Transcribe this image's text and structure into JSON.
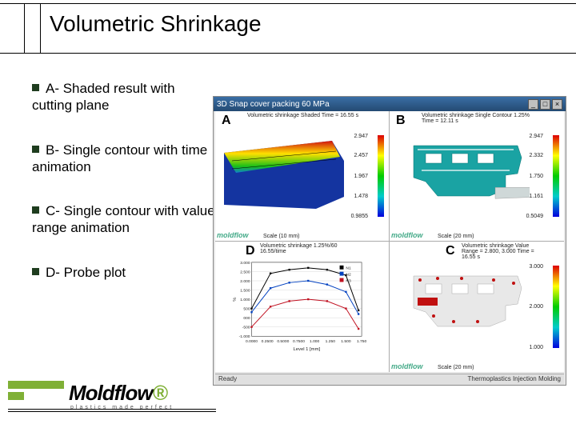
{
  "title": "Volumetric Shrinkage",
  "bullets": [
    "A- Shaded result with cutting plane",
    "B- Single contour with time animation",
    "C- Single contour with value range animation",
    "D- Probe plot"
  ],
  "window": {
    "title": "3D Snap cover packing 60 MPa",
    "min": "_",
    "max": "□",
    "close": "×",
    "status_left": "Ready",
    "status_right": "Thermoplastics Injection Molding"
  },
  "quads": {
    "A": {
      "label": "A",
      "caption": "Volumetric shrinkage Shaded\nTime = 16.55 s",
      "colorbar": {
        "gradient": "rainbow",
        "ticks": [
          "2.947",
          "2.457",
          "1.967",
          "1.478",
          "0.9855"
        ]
      },
      "scale": "Scale (10 mm)",
      "brand": "moldflow",
      "model": {
        "base_color": "#1434a0",
        "gradient_top": "#d01010",
        "gradient_mid": "#ffe000",
        "gradient_bot": "#18c018"
      }
    },
    "B": {
      "label": "B",
      "caption": "Volumetric shrinkage Single Contour 1.25%\nTime = 12.11 s",
      "colorbar": {
        "gradient": "rainbow",
        "ticks": [
          "2.947",
          "2.332",
          "1.750",
          "1.161",
          "0.5049"
        ]
      },
      "scale": "Scale (20 mm)",
      "brand": "moldflow",
      "model": {
        "color": "#1aa3a3",
        "contour": "#ffffff"
      },
      "minis": [
        "47",
        "52"
      ]
    },
    "C": {
      "label": "C",
      "caption": "Volumetric shrinkage Value Range\n= 2.800, 3.000\nTime = 16.55 s",
      "colorbar": {
        "gradient": "rainbow",
        "ticks": [
          "3.000",
          "2.000",
          "1.000"
        ]
      },
      "scale": "Scale (20 mm)",
      "brand": "moldflow",
      "model": {
        "color": "#e8e8e8",
        "highlight": "#c01010"
      },
      "minis": [
        "47",
        "52"
      ]
    },
    "D": {
      "label": "D",
      "caption": "Volumetric shrinkage 1.25%/60\n16.55/time",
      "plot": {
        "xlabel": "Level 1 [mm]",
        "ylabel": "%",
        "xlim": [
          0,
          1.75
        ],
        "xtick_step": 0.25,
        "ylim": [
          -1.0,
          3.0
        ],
        "ytick_step": 0.5,
        "grid_color": "#d8d8d8",
        "series": [
          {
            "name": "N1",
            "color": "#000000",
            "x": [
              0,
              0.3,
              0.6,
              0.9,
              1.2,
              1.5,
              1.7
            ],
            "y": [
              0.5,
              2.4,
              2.6,
              2.7,
              2.6,
              2.3,
              0.4
            ]
          },
          {
            "name": "N2",
            "color": "#0040c0",
            "x": [
              0,
              0.3,
              0.6,
              0.9,
              1.2,
              1.5,
              1.7
            ],
            "y": [
              0.3,
              1.6,
              1.9,
              2.0,
              1.8,
              1.4,
              0.2
            ]
          },
          {
            "name": "N3",
            "color": "#c01020",
            "x": [
              0,
              0.3,
              0.6,
              0.9,
              1.2,
              1.5,
              1.7
            ],
            "y": [
              -0.5,
              0.6,
              0.9,
              1.0,
              0.9,
              0.5,
              -0.6
            ]
          }
        ],
        "xticks": [
          "0.0000",
          "0.2500",
          "0.5000",
          "0.7500",
          "1.000",
          "1.250",
          "1.500",
          "1.750"
        ],
        "yticks": [
          "3.000",
          "2.500",
          "2.000",
          "1.500",
          "1.000",
          "500",
          "000",
          "-500",
          "-1.000"
        ],
        "legend": [
          "N1",
          "N2",
          "N3"
        ]
      }
    }
  },
  "logo": {
    "text": "Moldflow",
    "tagline": "plastics made perfect"
  }
}
